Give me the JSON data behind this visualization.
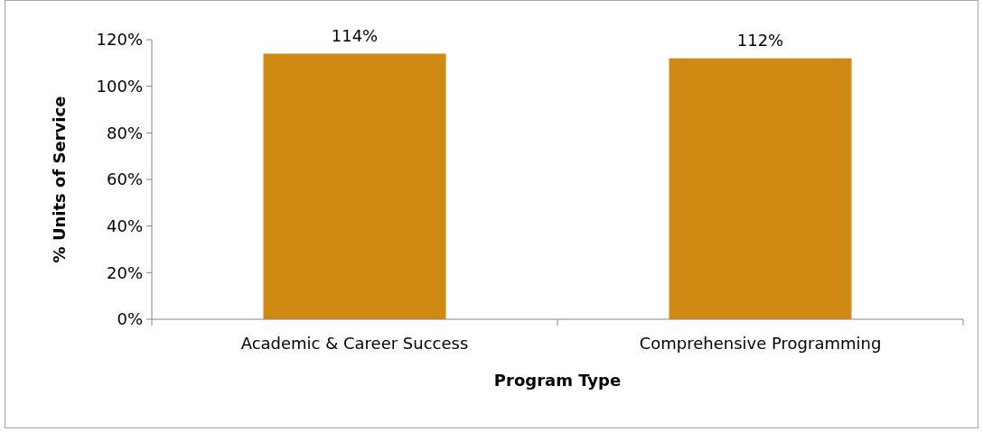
{
  "chart_data": {
    "type": "bar",
    "xlabel": "Program Type",
    "ylabel": "% Units of Service",
    "categories": [
      "Academic & Career Success",
      "Comprehensive Programming"
    ],
    "values": [
      114,
      112
    ],
    "color": "#d08a13",
    "value_labels": [
      "114%",
      "112%"
    ],
    "ylim": [
      0,
      120
    ],
    "yticks": [
      {
        "value": 0,
        "label": "0%"
      },
      {
        "value": 20,
        "label": "20%"
      },
      {
        "value": 40,
        "label": "40%"
      },
      {
        "value": 60,
        "label": "60%"
      },
      {
        "value": 80,
        "label": "80%"
      },
      {
        "value": 100,
        "label": "100%"
      },
      {
        "value": 120,
        "label": "120%"
      }
    ],
    "grid": false
  }
}
